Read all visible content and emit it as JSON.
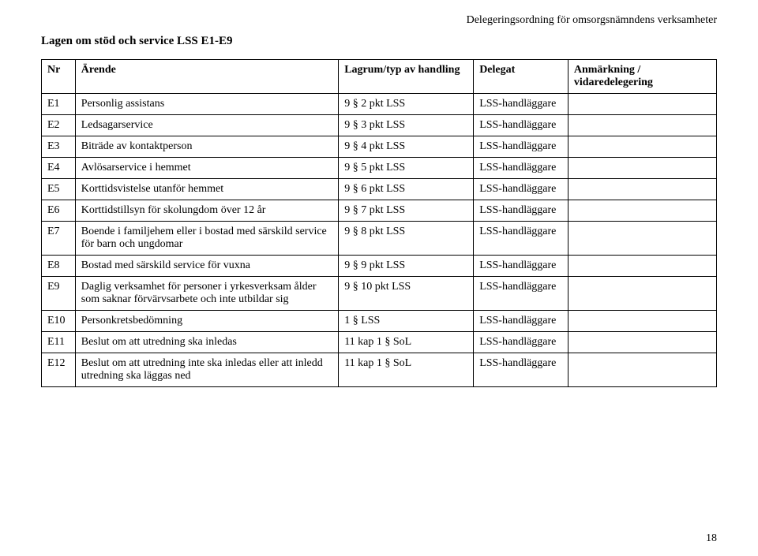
{
  "running_head": "Delegeringsordning för omsorgsnämndens verksamheter",
  "section_title": "Lagen om stöd och service LSS E1-E9",
  "page_number": "18",
  "table": {
    "headers": {
      "nr": "Nr",
      "arende": "Ärende",
      "lagrum": "Lagrum/typ av handling",
      "delegat": "Delegat",
      "anm": "Anmärkning / vidaredelegering"
    },
    "rows": [
      {
        "nr": "E1",
        "arende": "Personlig assistans",
        "lagrum": "9 § 2 pkt LSS",
        "delegat": "LSS-handläggare",
        "anm": ""
      },
      {
        "nr": "E2",
        "arende": "Ledsagarservice",
        "lagrum": "9 § 3 pkt LSS",
        "delegat": "LSS-handläggare",
        "anm": ""
      },
      {
        "nr": "E3",
        "arende": "Biträde av kontaktperson",
        "lagrum": "9 § 4 pkt LSS",
        "delegat": "LSS-handläggare",
        "anm": ""
      },
      {
        "nr": "E4",
        "arende": "Avlösarservice i hemmet",
        "lagrum": "9 § 5 pkt LSS",
        "delegat": "LSS-handläggare",
        "anm": ""
      },
      {
        "nr": "E5",
        "arende": "Korttidsvistelse utanför hemmet",
        "lagrum": "9 § 6 pkt LSS",
        "delegat": "LSS-handläggare",
        "anm": ""
      },
      {
        "nr": "E6",
        "arende": "Korttidstillsyn för skolungdom över 12 år",
        "lagrum": "9 § 7 pkt LSS",
        "delegat": "LSS-handläggare",
        "anm": ""
      },
      {
        "nr": "E7",
        "arende": "Boende i familjehem eller i bostad med särskild service för barn och ungdomar",
        "lagrum": "9 § 8 pkt LSS",
        "delegat": "LSS-handläggare",
        "anm": ""
      },
      {
        "nr": "E8",
        "arende": "Bostad med särskild service för vuxna",
        "lagrum": "9 § 9 pkt LSS",
        "delegat": "LSS-handläggare",
        "anm": ""
      },
      {
        "nr": "E9",
        "arende": "Daglig verksamhet för personer i yrkesverksam ålder som saknar förvärvsarbete och inte utbildar sig",
        "lagrum": "9 § 10 pkt LSS",
        "delegat": "LSS-handläggare",
        "anm": ""
      },
      {
        "nr": "E10",
        "arende": "Personkretsbedömning",
        "lagrum": "1 § LSS",
        "delegat": "LSS-handläggare",
        "anm": ""
      },
      {
        "nr": "E11",
        "arende": "Beslut om att utredning ska inledas",
        "lagrum": "11 kap 1 § SoL",
        "delegat": "LSS-handläggare",
        "anm": ""
      },
      {
        "nr": "E12",
        "arende": "Beslut om att utredning inte ska inledas eller att inledd utredning ska läggas ned",
        "lagrum": "11 kap 1 § SoL",
        "delegat": "LSS-handläggare",
        "anm": ""
      }
    ]
  }
}
